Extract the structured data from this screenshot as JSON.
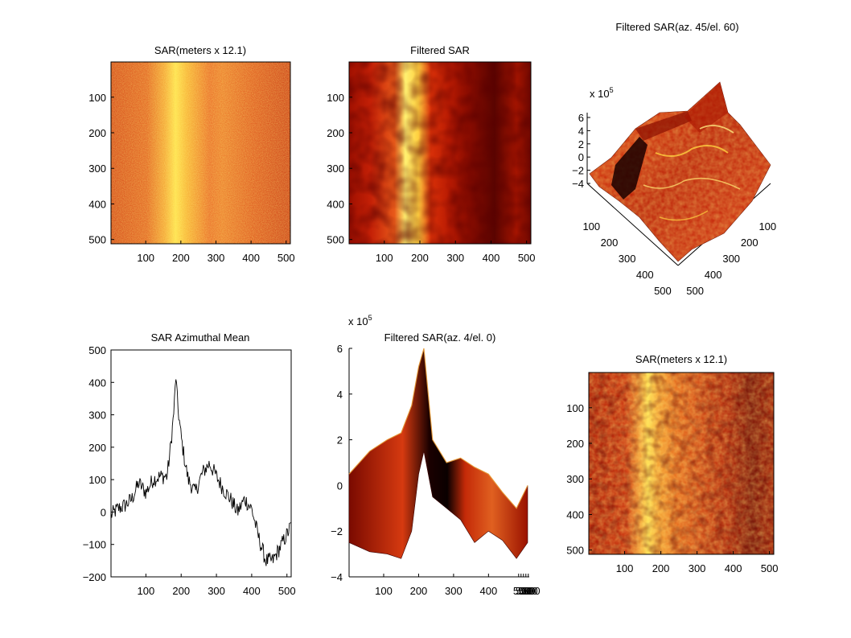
{
  "panels": {
    "top_left": {
      "title": "SAR(meters x 12.1)",
      "x_ticks": [
        "100",
        "200",
        "300",
        "400",
        "500"
      ],
      "y_ticks": [
        "100",
        "200",
        "300",
        "400",
        "500"
      ]
    },
    "top_middle": {
      "title": "Filtered SAR",
      "x_ticks": [
        "100",
        "200",
        "300",
        "400",
        "500"
      ],
      "y_ticks": [
        "100",
        "200",
        "300",
        "400",
        "500"
      ]
    },
    "top_right": {
      "title": "Filtered SAR(az. 45/el. 60)",
      "scale_base": "x 10",
      "scale_exp": "5",
      "z_ticks": [
        "6",
        "4",
        "2",
        "0",
        "−2",
        "−4"
      ],
      "left_axis_ticks": [
        "100",
        "200",
        "300",
        "400",
        "500"
      ],
      "right_axis_ticks": [
        "100",
        "200",
        "300",
        "400",
        "500"
      ]
    },
    "bottom_left": {
      "title": "SAR Azimuthal Mean",
      "x_ticks": [
        "100",
        "200",
        "300",
        "400",
        "500"
      ],
      "y_ticks": [
        "500",
        "400",
        "300",
        "200",
        "100",
        "0",
        "−100",
        "−200"
      ]
    },
    "bottom_middle": {
      "title": "Filtered SAR(az. 4/el. 0)",
      "scale_base": "x 10",
      "scale_exp": "5",
      "x_ticks": [
        "100",
        "200",
        "300",
        "400"
      ],
      "x_tick_crowd": "500",
      "y_ticks": [
        "6",
        "4",
        "2",
        "0",
        "−2",
        "−4"
      ]
    },
    "bottom_right": {
      "title": "SAR(meters x 12.1)",
      "x_ticks": [
        "100",
        "200",
        "300",
        "400",
        "500"
      ],
      "y_ticks": [
        "100",
        "200",
        "300",
        "400",
        "500"
      ]
    }
  },
  "chart_data": [
    {
      "type": "heatmap",
      "title": "SAR(meters x 12.1)",
      "xlim": [
        1,
        512
      ],
      "ylim": [
        512,
        1
      ],
      "colormap": "hot",
      "description_bright_band_x": 200
    },
    {
      "type": "heatmap",
      "title": "Filtered SAR",
      "xlim": [
        1,
        512
      ],
      "ylim": [
        512,
        1
      ],
      "colormap": "hot",
      "description_bright_band_x": 200
    },
    {
      "type": "surface",
      "title": "Filtered SAR(az. 45/el. 60)",
      "view": {
        "azimuth": 45,
        "elevation": 60
      },
      "zlim": [
        -4,
        6
      ],
      "z_scale": "x 10^5"
    },
    {
      "type": "line",
      "title": "SAR Azimuthal Mean",
      "xlim": [
        1,
        512
      ],
      "ylim": [
        -200,
        500
      ],
      "x": [
        1,
        20,
        40,
        60,
        80,
        100,
        120,
        140,
        160,
        170,
        180,
        185,
        190,
        200,
        210,
        220,
        240,
        260,
        280,
        300,
        320,
        340,
        360,
        380,
        400,
        420,
        440,
        460,
        480,
        500,
        512
      ],
      "y": [
        -10,
        10,
        20,
        40,
        90,
        60,
        100,
        110,
        110,
        200,
        320,
        420,
        330,
        230,
        160,
        100,
        60,
        120,
        150,
        110,
        70,
        40,
        0,
        40,
        10,
        -80,
        -150,
        -150,
        -110,
        -70,
        -40
      ],
      "color": "#000000"
    },
    {
      "type": "surface",
      "title": "Filtered SAR(az. 4/el. 0)",
      "view": {
        "azimuth": 4,
        "elevation": 0
      },
      "ylim": [
        -4,
        6
      ],
      "y_scale": "x 10^5",
      "x": [
        1,
        60,
        110,
        150,
        180,
        200,
        215,
        240,
        280,
        320,
        360,
        400,
        440,
        480,
        512
      ],
      "upper": [
        0.5,
        1.5,
        2.0,
        2.3,
        3.5,
        5.2,
        6.0,
        2.0,
        1.0,
        1.2,
        0.8,
        0.5,
        -0.3,
        -1.0,
        0.0
      ],
      "lower": [
        -2.5,
        -2.9,
        -3.0,
        -3.2,
        -2.0,
        0.5,
        1.5,
        -0.5,
        -1.0,
        -1.5,
        -2.5,
        -2.0,
        -2.4,
        -3.2,
        -2.5
      ]
    },
    {
      "type": "heatmap",
      "title": "SAR(meters x 12.1)",
      "xlim": [
        1,
        512
      ],
      "ylim": [
        512,
        1
      ],
      "colormap": "hot",
      "description_bright_band_x": 200
    }
  ]
}
